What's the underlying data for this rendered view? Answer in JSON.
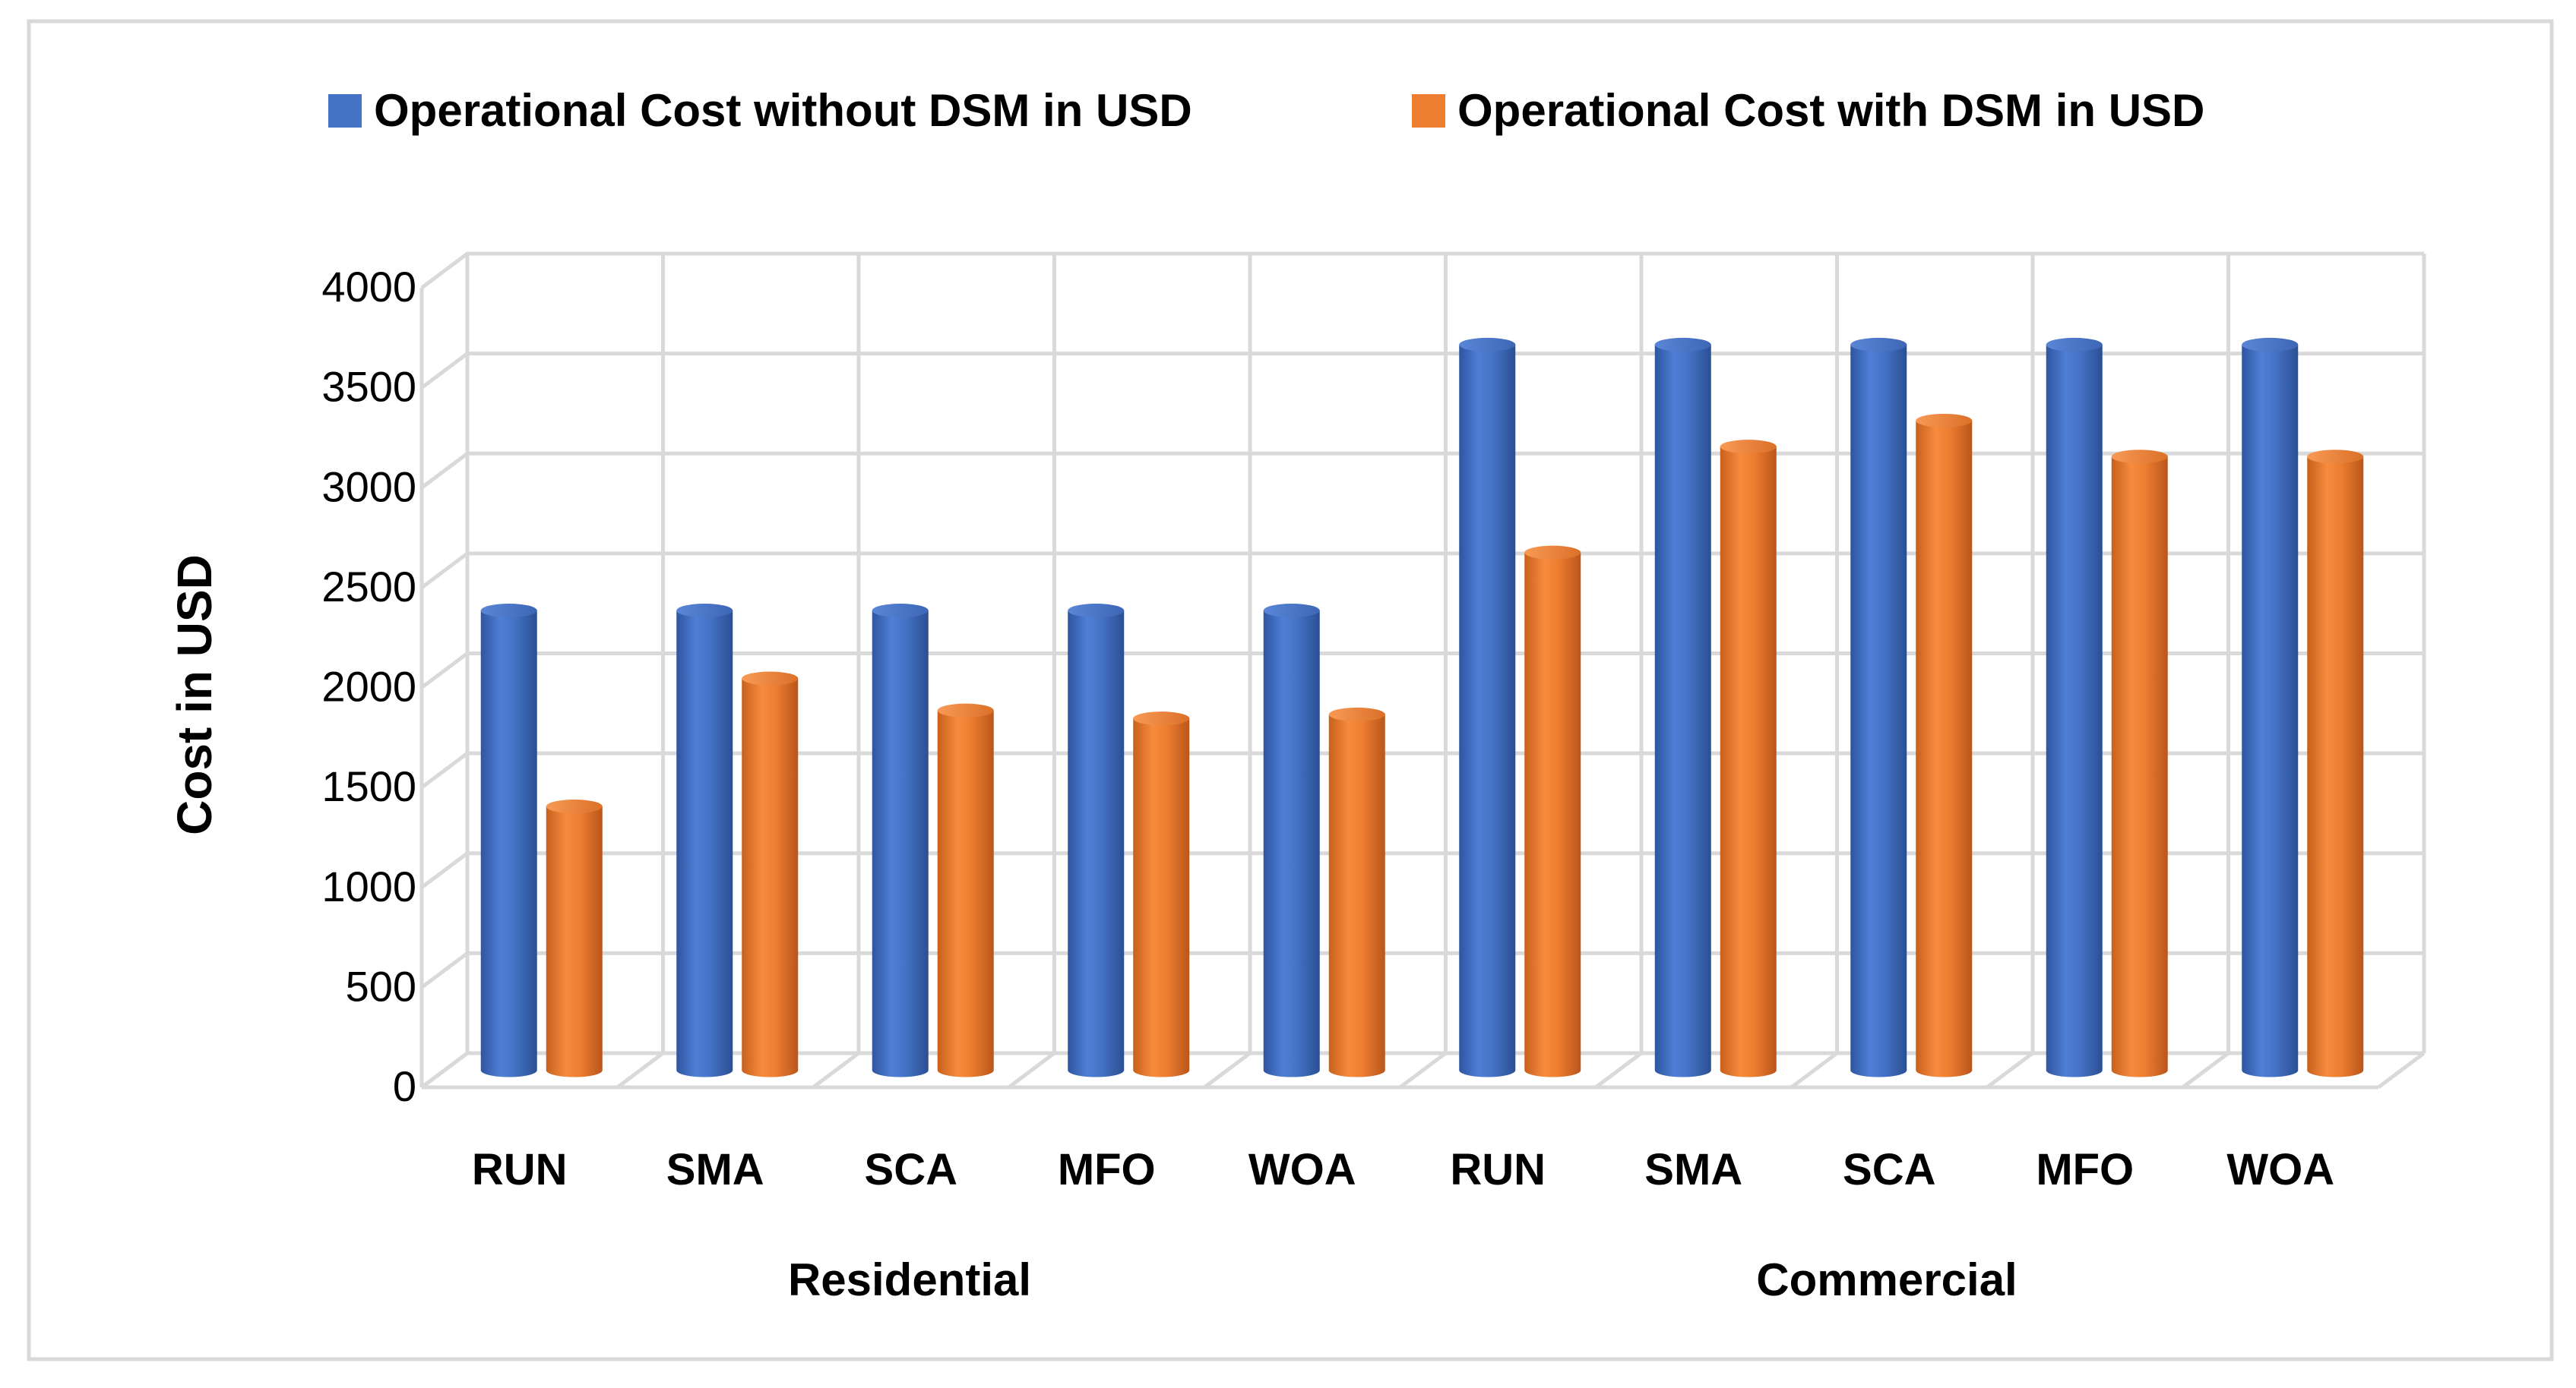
{
  "chart_data": {
    "type": "bar",
    "title": "",
    "xlabel": "",
    "ylabel": "Cost in USD",
    "ylim": [
      0,
      4000
    ],
    "yticks": [
      0,
      500,
      1000,
      1500,
      2000,
      2500,
      3000,
      3500,
      4000
    ],
    "grid": true,
    "legend_position": "top",
    "groups": [
      {
        "name": "Residential",
        "categories": [
          "RUN",
          "SMA",
          "SCA",
          "MFO",
          "WOA"
        ]
      },
      {
        "name": "Commercial",
        "categories": [
          "RUN",
          "SMA",
          "SCA",
          "MFO",
          "WOA"
        ]
      }
    ],
    "categories": [
      "RUN",
      "SMA",
      "SCA",
      "MFO",
      "WOA",
      "RUN",
      "SMA",
      "SCA",
      "MFO",
      "WOA"
    ],
    "series": [
      {
        "name": "Operational Cost without DSM in USD",
        "color": "#4472C4",
        "values": [
          2300,
          2300,
          2300,
          2300,
          2300,
          3630,
          3630,
          3630,
          3630,
          3630
        ]
      },
      {
        "name": "Operational Cost with DSM in USD",
        "color": "#ED7D31",
        "values": [
          1320,
          1960,
          1800,
          1760,
          1780,
          2590,
          3120,
          3250,
          3070,
          3070
        ]
      }
    ]
  }
}
